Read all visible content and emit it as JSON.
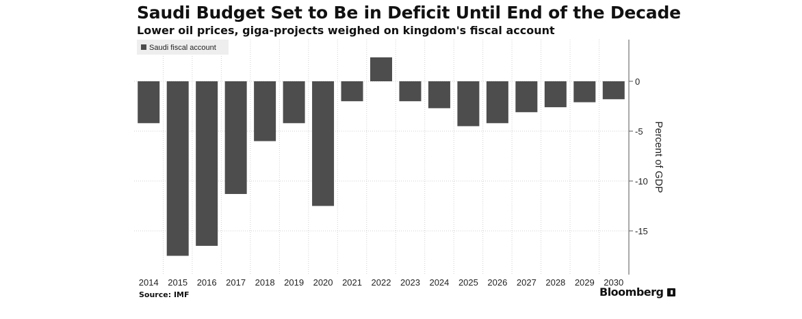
{
  "header": {
    "title": "Saudi Budget Set to Be in Deficit Until End of the Decade",
    "subtitle": "Lower oil prices, giga-projects weighed on kingdom's fiscal account"
  },
  "footer": {
    "source": "Source: IMF",
    "brand": "Bloomberg"
  },
  "colors": {
    "bar": "#4d4d4d",
    "grid": "#cfcfcf",
    "legend_bg": "#eeeeee"
  },
  "chart_data": {
    "type": "bar",
    "title": "Saudi Budget Set to Be in Deficit Until End of the Decade",
    "subtitle": "Lower oil prices, giga-projects weighed on kingdom's fiscal account",
    "categories": [
      "2014",
      "2015",
      "2016",
      "2017",
      "2018",
      "2019",
      "2020",
      "2021",
      "2022",
      "2023",
      "2024",
      "2025",
      "2026",
      "2027",
      "2028",
      "2029",
      "2030"
    ],
    "series": [
      {
        "name": "Saudi fiscal account",
        "values": [
          -4.2,
          -17.5,
          -16.5,
          -11.3,
          -6.0,
          -4.2,
          -12.5,
          -2.0,
          2.4,
          -2.0,
          -2.7,
          -4.5,
          -4.2,
          -3.1,
          -2.6,
          -2.1,
          -1.8
        ]
      }
    ],
    "xlabel": "",
    "ylabel": "Percent of GDP",
    "ylim": [
      -19.5,
      4.2
    ],
    "yticks": [
      0,
      -5,
      -10,
      -15
    ],
    "y_axis_side": "right",
    "grid": true,
    "legend_position": "top-left"
  }
}
